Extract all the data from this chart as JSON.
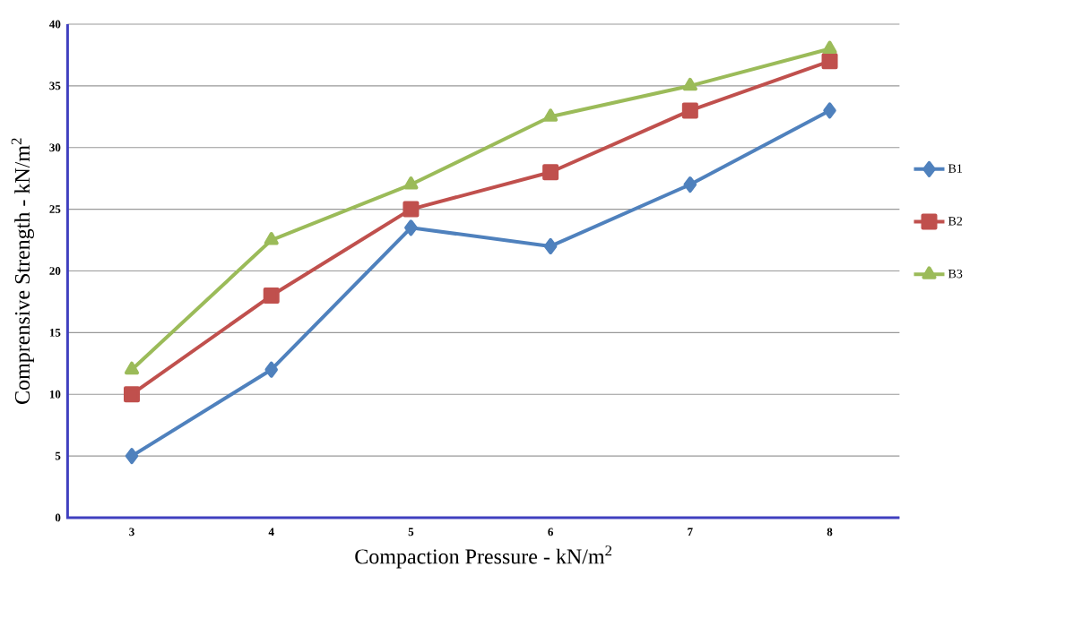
{
  "chart_data": {
    "type": "line",
    "xlabel": "Compaction Pressure - kN/m$^{2}$",
    "ylabel": "Comprensive Strength - kN/m$^{2}$",
    "categories": [
      "3",
      "4",
      "5",
      "6",
      "7",
      "8"
    ],
    "series": [
      {
        "name": "B1",
        "color": "#4f81bd",
        "marker": "diamond",
        "values": [
          5,
          12,
          23.5,
          22,
          27,
          33
        ]
      },
      {
        "name": "B2",
        "color": "#c0504d",
        "marker": "square",
        "values": [
          10,
          18,
          25,
          28,
          33,
          37
        ]
      },
      {
        "name": "B3",
        "color": "#9bbb59",
        "marker": "triangle",
        "values": [
          12,
          22.5,
          27,
          32.5,
          35,
          38
        ]
      }
    ],
    "ylim": [
      0,
      40
    ],
    "yticks": [
      0,
      5,
      10,
      15,
      20,
      25,
      30,
      35,
      40
    ],
    "grid": "y",
    "legend": "right",
    "line_style": "solid"
  }
}
